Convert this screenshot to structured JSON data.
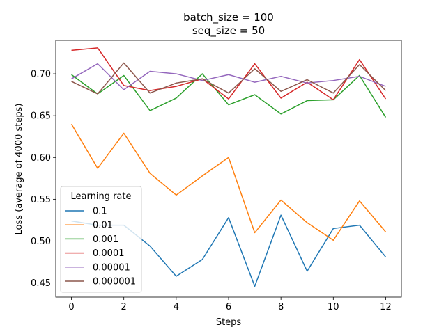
{
  "chart_data": {
    "type": "line",
    "title_line1": "batch_size = 100",
    "title_line2": "seq_size = 50",
    "xlabel": "Steps",
    "ylabel": "Loss (average of 4000 steps)",
    "xlim": [
      -0.6,
      12.6
    ],
    "ylim": [
      0.433,
      0.74
    ],
    "x_ticks": [
      0,
      2,
      4,
      6,
      8,
      10,
      12
    ],
    "y_ticks": [
      0.45,
      0.5,
      0.55,
      0.6,
      0.65,
      0.7
    ],
    "y_tick_labels": [
      "0.45",
      "0.50",
      "0.55",
      "0.60",
      "0.65",
      "0.70"
    ],
    "x": [
      0,
      1,
      2,
      3,
      4,
      5,
      6,
      7,
      8,
      9,
      10,
      11,
      12
    ],
    "legend_title": "Learning rate",
    "legend_position": "lower-left",
    "grid": false,
    "series": [
      {
        "name": "0.1",
        "color": "#1f77b4",
        "values": [
          0.524,
          0.519,
          0.519,
          0.494,
          0.458,
          0.478,
          0.528,
          0.446,
          0.531,
          0.464,
          0.515,
          0.519,
          0.481
        ]
      },
      {
        "name": "0.01",
        "color": "#ff7f0e",
        "values": [
          0.64,
          0.587,
          0.629,
          0.581,
          0.555,
          0.578,
          0.6,
          0.51,
          0.549,
          0.522,
          0.501,
          0.548,
          0.511
        ]
      },
      {
        "name": "0.001",
        "color": "#2ca02c",
        "values": [
          0.699,
          0.676,
          0.698,
          0.656,
          0.671,
          0.7,
          0.663,
          0.675,
          0.652,
          0.668,
          0.669,
          0.698,
          0.648
        ]
      },
      {
        "name": "0.0001",
        "color": "#d62728",
        "values": [
          0.728,
          0.731,
          0.686,
          0.68,
          0.685,
          0.694,
          0.67,
          0.712,
          0.671,
          0.69,
          0.669,
          0.717,
          0.67
        ]
      },
      {
        "name": "0.00001",
        "color": "#9467bd",
        "values": [
          0.694,
          0.712,
          0.681,
          0.703,
          0.7,
          0.692,
          0.699,
          0.69,
          0.697,
          0.689,
          0.692,
          0.697,
          0.685
        ]
      },
      {
        "name": "0.000001",
        "color": "#8c564b",
        "values": [
          0.691,
          0.676,
          0.713,
          0.677,
          0.689,
          0.694,
          0.677,
          0.706,
          0.679,
          0.693,
          0.677,
          0.711,
          0.68
        ]
      }
    ]
  }
}
